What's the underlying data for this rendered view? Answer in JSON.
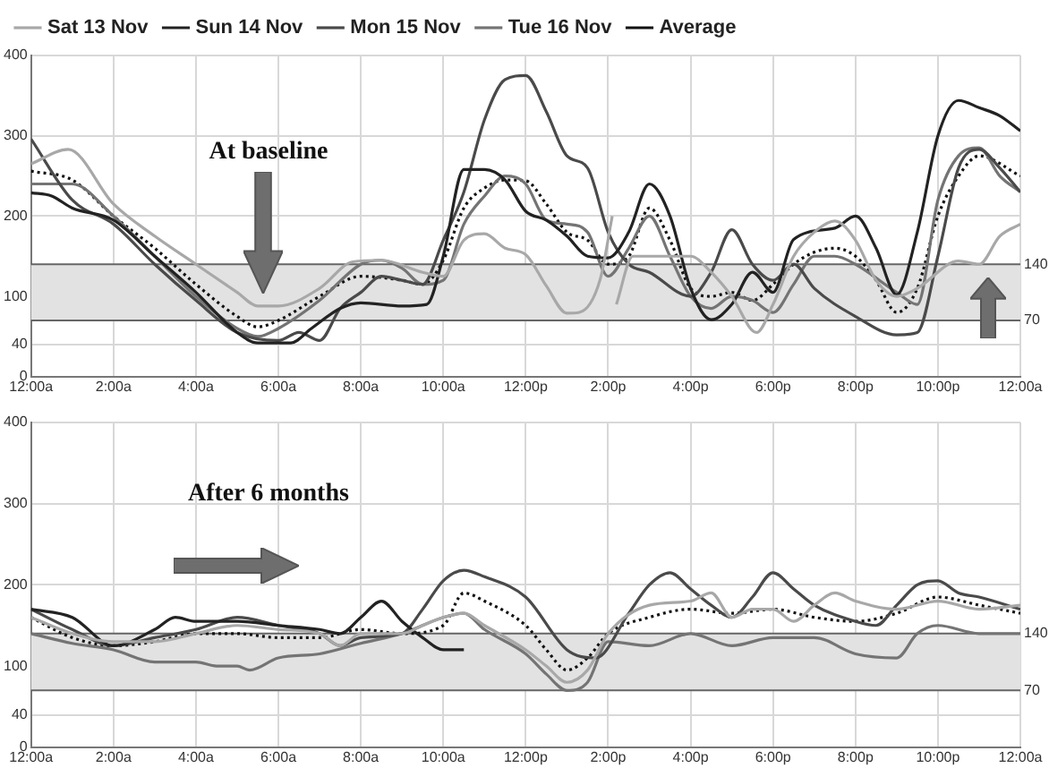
{
  "chart_data": [
    {
      "type": "line",
      "annotations": [
        "At baseline"
      ],
      "legend": "top left",
      "grid": true,
      "marker": "none",
      "xlim": [
        0,
        24
      ],
      "ylim": [
        0,
        400
      ],
      "xticks": [
        {
          "value": 0,
          "label": "12:00a"
        },
        {
          "value": 2,
          "label": "2:00a"
        },
        {
          "value": 4,
          "label": "4:00a"
        },
        {
          "value": 6,
          "label": "6:00a"
        },
        {
          "value": 8,
          "label": "8:00a"
        },
        {
          "value": 10,
          "label": "10:00a"
        },
        {
          "value": 12,
          "label": "12:00p"
        },
        {
          "value": 14,
          "label": "2:00p"
        },
        {
          "value": 16,
          "label": "4:00p"
        },
        {
          "value": 18,
          "label": "6:00p"
        },
        {
          "value": 20,
          "label": "8:00p"
        },
        {
          "value": 22,
          "label": "10:00p"
        },
        {
          "value": 24,
          "label": "12:00a"
        }
      ],
      "yticks": [
        0,
        40,
        100,
        200,
        300,
        400
      ],
      "bands": [
        {
          "axis": "y",
          "from": 70,
          "to": 140,
          "color": "#e2e2e2"
        }
      ],
      "ref_lines": [
        {
          "axis": "y",
          "value": 140,
          "label": "140",
          "color": "#666666"
        },
        {
          "axis": "y",
          "value": 70,
          "label": "70",
          "color": "#666666"
        }
      ],
      "series": [
        {
          "name": "Sat 13 Nov",
          "color": "#a8a8a8",
          "line_style": "solid",
          "x": [
            0,
            0.9,
            2,
            3,
            4,
            5,
            5.5,
            6,
            7,
            7.8,
            8.5,
            9.5,
            10,
            10.5,
            11,
            11.5,
            12,
            12.5,
            13,
            13.3,
            13.8,
            14.1,
            14.15,
            14.2,
            14.6,
            15,
            16,
            16.5,
            17,
            17.6,
            18,
            18.5,
            19,
            19.5,
            20,
            20.5,
            21,
            21.5,
            22.5,
            23,
            23.5,
            24
          ],
          "values": [
            265,
            283,
            215,
            175,
            140,
            105,
            88,
            88,
            110,
            143,
            145,
            130,
            125,
            170,
            178,
            160,
            152,
            113,
            79,
            80,
            120,
            200,
            null,
            90,
            150,
            150,
            150,
            130,
            100,
            55,
            90,
            150,
            180,
            194,
            170,
            120,
            100,
            110,
            144,
            140,
            175,
            190
          ]
        },
        {
          "name": "Sun 14 Nov",
          "color": "#222222",
          "line_style": "solid",
          "x": [
            0,
            0.5,
            1,
            2,
            3,
            4,
            5,
            5.5,
            6.3,
            6.8,
            7.5,
            8,
            9,
            9.6,
            10,
            10.5,
            11,
            11.5,
            12,
            12.5,
            13,
            13.5,
            14,
            14.5,
            15,
            15.5,
            16,
            16.5,
            17,
            17.5,
            18,
            18.5,
            19.5,
            20,
            20.5,
            21,
            21.5,
            22,
            22.5,
            23,
            23.5,
            24
          ],
          "values": [
            229,
            225,
            210,
            195,
            150,
            105,
            55,
            42,
            42,
            60,
            85,
            92,
            88,
            90,
            150,
            258,
            258,
            245,
            206,
            195,
            175,
            150,
            148,
            180,
            240,
            200,
            110,
            71,
            90,
            130,
            105,
            171,
            185,
            200,
            160,
            102,
            180,
            300,
            344,
            335,
            325,
            306
          ]
        },
        {
          "name": "Mon 15 Nov",
          "color": "#4a4a4a",
          "line_style": "solid",
          "x": [
            0,
            1,
            2,
            3,
            4,
            5,
            6,
            6.5,
            7,
            7.5,
            8,
            8.5,
            9,
            9.5,
            10,
            10.5,
            11,
            11.5,
            12,
            12.5,
            13,
            13.5,
            14,
            14.5,
            15,
            16,
            16.5,
            17,
            17.5,
            18,
            18.5,
            19,
            20,
            21,
            21.5,
            22,
            22.5,
            23,
            23.5,
            24
          ],
          "values": [
            296,
            220,
            190,
            140,
            95,
            55,
            45,
            55,
            45,
            85,
            105,
            125,
            120,
            115,
            170,
            230,
            320,
            370,
            375,
            330,
            275,
            260,
            180,
            140,
            130,
            100,
            130,
            183,
            140,
            120,
            140,
            110,
            75,
            52,
            55,
            150,
            260,
            283,
            260,
            230
          ]
        },
        {
          "name": "Tue 16 Nov",
          "color": "#747474",
          "line_style": "solid",
          "x": [
            0,
            1,
            2,
            3,
            4,
            5,
            5.5,
            6,
            7,
            8,
            8.5,
            9,
            9.5,
            10,
            10.5,
            11,
            11.5,
            12,
            12.5,
            13,
            13.5,
            14,
            14.5,
            15,
            15.5,
            16,
            16.5,
            17,
            17.5,
            18,
            18.5,
            19,
            19.5,
            20,
            21,
            21.5,
            22,
            22.5,
            23,
            23.5,
            24
          ],
          "values": [
            240,
            240,
            200,
            150,
            100,
            60,
            50,
            60,
            95,
            140,
            145,
            135,
            115,
            120,
            190,
            225,
            250,
            240,
            195,
            190,
            180,
            125,
            160,
            200,
            150,
            100,
            85,
            100,
            95,
            80,
            115,
            150,
            150,
            140,
            105,
            90,
            220,
            275,
            285,
            250,
            230
          ]
        },
        {
          "name": "Average",
          "color": "#111111",
          "line_style": "dotted",
          "x": [
            0,
            1,
            2,
            3,
            4,
            5,
            5.5,
            6,
            7,
            8,
            9,
            9.5,
            10,
            10.5,
            11,
            11.5,
            12,
            12.5,
            13,
            13.5,
            14,
            14.5,
            15,
            15.5,
            16,
            16.5,
            17,
            17.5,
            18,
            18.5,
            19,
            19.5,
            20,
            20.5,
            21,
            21.5,
            22,
            22.5,
            23,
            24
          ],
          "values": [
            256,
            245,
            200,
            160,
            115,
            75,
            62,
            70,
            100,
            125,
            120,
            115,
            145,
            210,
            235,
            245,
            244,
            215,
            180,
            170,
            140,
            150,
            210,
            170,
            110,
            100,
            105,
            95,
            115,
            140,
            155,
            160,
            150,
            120,
            80,
            110,
            200,
            250,
            275,
            250
          ]
        }
      ]
    },
    {
      "type": "line",
      "annotations": [
        "After 6 months"
      ],
      "grid": true,
      "marker": "none",
      "xlim": [
        0,
        24
      ],
      "ylim": [
        0,
        400
      ],
      "xticks": [
        {
          "value": 0,
          "label": "12:00a"
        },
        {
          "value": 2,
          "label": "2:00a"
        },
        {
          "value": 4,
          "label": "4:00a"
        },
        {
          "value": 6,
          "label": "6:00a"
        },
        {
          "value": 8,
          "label": "8:00a"
        },
        {
          "value": 10,
          "label": "10:00a"
        },
        {
          "value": 12,
          "label": "12:00p"
        },
        {
          "value": 14,
          "label": "2:00p"
        },
        {
          "value": 16,
          "label": "4:00p"
        },
        {
          "value": 18,
          "label": "6:00p"
        },
        {
          "value": 20,
          "label": "8:00p"
        },
        {
          "value": 22,
          "label": "10:00p"
        },
        {
          "value": 24,
          "label": "12:00a"
        }
      ],
      "yticks": [
        0,
        40,
        100,
        200,
        300,
        400
      ],
      "bands": [
        {
          "axis": "y",
          "from": 70,
          "to": 140,
          "color": "#e2e2e2"
        }
      ],
      "ref_lines": [
        {
          "axis": "y",
          "value": 140,
          "label": "140",
          "color": "#666666"
        },
        {
          "axis": "y",
          "value": 70,
          "label": "70",
          "color": "#666666"
        }
      ],
      "series": [
        {
          "color": "#a8a8a8",
          "line_style": "solid",
          "x": [
            0,
            1,
            2,
            3,
            4,
            5,
            6,
            7,
            7.5,
            8,
            9,
            9.5,
            10,
            10.5,
            11,
            12,
            12.5,
            13,
            13.5,
            14,
            15,
            16,
            16.5,
            17,
            17.5,
            18,
            18.5,
            19,
            19.5,
            20,
            21,
            22,
            23,
            24
          ],
          "values": [
            160,
            140,
            130,
            130,
            140,
            150,
            145,
            140,
            125,
            140,
            140,
            150,
            160,
            165,
            150,
            120,
            100,
            80,
            95,
            140,
            175,
            180,
            190,
            160,
            170,
            170,
            155,
            175,
            190,
            180,
            170,
            180,
            170,
            175
          ]
        },
        {
          "color": "#222222",
          "line_style": "solid",
          "x": [
            0,
            1,
            2,
            3,
            3.5,
            4,
            5,
            6,
            7,
            7.5,
            8,
            8.5,
            9,
            9.5,
            10,
            10.5
          ],
          "values": [
            170,
            160,
            125,
            145,
            160,
            155,
            155,
            150,
            145,
            140,
            160,
            180,
            155,
            135,
            120,
            120
          ]
        },
        {
          "color": "#4a4a4a",
          "line_style": "solid",
          "x": [
            0,
            1,
            2,
            3,
            4,
            5,
            6,
            7,
            7.5,
            8,
            9,
            9.5,
            10,
            10.5,
            11,
            12,
            13,
            13.7,
            14.5,
            15,
            15.5,
            16,
            16.5,
            17,
            17.5,
            18,
            18.5,
            19,
            20,
            20.5,
            21,
            21.5,
            22,
            22.5,
            23,
            24
          ],
          "values": [
            170,
            145,
            125,
            135,
            145,
            160,
            150,
            140,
            125,
            135,
            140,
            170,
            205,
            218,
            210,
            185,
            120,
            110,
            165,
            200,
            215,
            195,
            175,
            160,
            185,
            215,
            195,
            175,
            155,
            150,
            175,
            200,
            205,
            190,
            185,
            170
          ]
        },
        {
          "color": "#747474",
          "line_style": "solid",
          "x": [
            0,
            1,
            2,
            3,
            4,
            4.5,
            5,
            5.3,
            6,
            7,
            8,
            9,
            10,
            10.5,
            11,
            12,
            12.5,
            13,
            13.5,
            14,
            15,
            16,
            17,
            18,
            19,
            20,
            21,
            21.5,
            22,
            23,
            24
          ],
          "values": [
            140,
            128,
            120,
            105,
            105,
            100,
            100,
            95,
            110,
            115,
            128,
            140,
            160,
            165,
            145,
            115,
            90,
            70,
            80,
            130,
            125,
            140,
            125,
            135,
            135,
            115,
            110,
            140,
            150,
            140,
            140
          ]
        },
        {
          "color": "#111111",
          "line_style": "dotted",
          "x": [
            0,
            1,
            2,
            3,
            4,
            5,
            6,
            7,
            8,
            9,
            10,
            10.5,
            11,
            12,
            12.5,
            13,
            13.5,
            14,
            15,
            16,
            17,
            18,
            19,
            20,
            21,
            22,
            23,
            24
          ],
          "values": [
            160,
            135,
            125,
            130,
            140,
            140,
            135,
            135,
            145,
            140,
            150,
            190,
            180,
            150,
            120,
            95,
            110,
            140,
            160,
            170,
            165,
            170,
            160,
            155,
            165,
            185,
            175,
            165
          ]
        }
      ]
    }
  ]
}
